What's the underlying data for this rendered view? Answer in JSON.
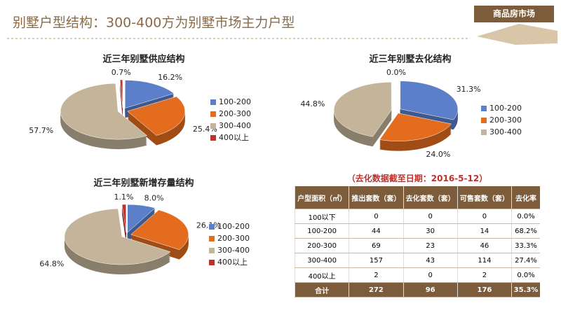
{
  "header": {
    "title": "别墅户型结构：300-400方为别墅市场主力户型",
    "tag": "商品房市场"
  },
  "chart_data": [
    {
      "type": "pie",
      "title": "近三年别墅供应结构",
      "categories": [
        "100-200",
        "200-300",
        "300-400",
        "400以上"
      ],
      "values": [
        16.2,
        25.4,
        57.7,
        0.7
      ],
      "value_labels": [
        "16.2%",
        "25.4%",
        "57.7%",
        "0.7%"
      ],
      "colors": [
        "#5b7fc9",
        "#e46c1e",
        "#c4b49a",
        "#c0302c"
      ]
    },
    {
      "type": "pie",
      "title": "近三年别墅去化结构",
      "categories": [
        "100-200",
        "200-300",
        "300-400",
        null
      ],
      "values": [
        31.3,
        24.0,
        44.8,
        0.0
      ],
      "value_labels": [
        "31.3%",
        "24.0%",
        "44.8%",
        "0.0%"
      ],
      "colors": [
        "#5b7fc9",
        "#e46c1e",
        "#c4b49a",
        "#c0302c"
      ]
    },
    {
      "type": "pie",
      "title": "近三年别墅新增存量结构",
      "categories": [
        "100-200",
        "200-300",
        "300-400",
        "400以上"
      ],
      "values": [
        8.0,
        26.1,
        64.8,
        1.1
      ],
      "value_labels": [
        "8.0%",
        "26.1%",
        "64.8%",
        "1.1%"
      ],
      "colors": [
        "#5b7fc9",
        "#e46c1e",
        "#c4b49a",
        "#c0302c"
      ]
    }
  ],
  "table": {
    "note": "（去化数据截至日期：2016-5-12）",
    "header": [
      "户型面积（㎡）",
      "推出套数（套）",
      "去化套数（套）",
      "可售套数（套）",
      "去化率"
    ],
    "rows": [
      [
        "100以下",
        "0",
        "0",
        "0",
        "0.0%"
      ],
      [
        "100-200",
        "44",
        "30",
        "14",
        "68.2%"
      ],
      [
        "200-300",
        "69",
        "23",
        "46",
        "33.3%"
      ],
      [
        "300-400",
        "157",
        "43",
        "114",
        "27.4%"
      ],
      [
        "400以上",
        "2",
        "0",
        "2",
        "0.0%"
      ]
    ],
    "footer": [
      "合计",
      "272",
      "96",
      "176",
      "35.3%"
    ]
  }
}
